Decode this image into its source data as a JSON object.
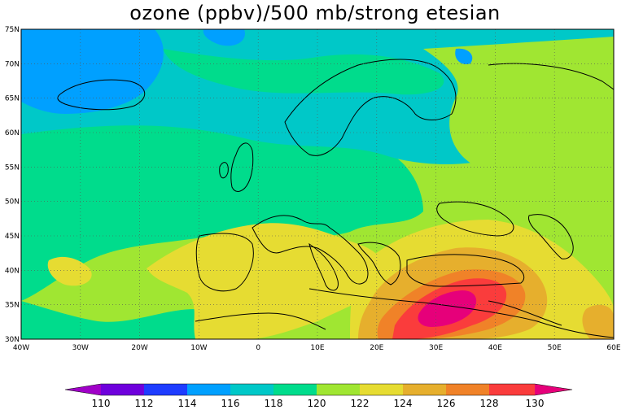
{
  "title": "ozone (ppbv)/500 mb/strong etesian",
  "colors": {
    "c110": "#a000c8",
    "c112": "#6e00dc",
    "c114": "#1e3cff",
    "c116": "#00a0ff",
    "c118": "#00c8c8",
    "c120": "#00dc8c",
    "c122": "#a0e632",
    "c124": "#e6dc32",
    "c126": "#e6af2d",
    "c128": "#f08228",
    "c130": "#fa3c3c",
    "c132": "#e6007a",
    "land_outline": "#000000"
  },
  "axes": {
    "lon_labels": [
      "40W",
      "30W",
      "20W",
      "10W",
      "0",
      "10E",
      "20E",
      "30E",
      "40E",
      "50E",
      "60E"
    ],
    "lat_labels": [
      "75N",
      "70N",
      "65N",
      "60N",
      "55N",
      "50N",
      "45N",
      "40N",
      "35N",
      "30N"
    ]
  },
  "colorbar": {
    "labels": [
      "110",
      "112",
      "114",
      "116",
      "118",
      "120",
      "122",
      "124",
      "126",
      "128",
      "130"
    ]
  }
}
